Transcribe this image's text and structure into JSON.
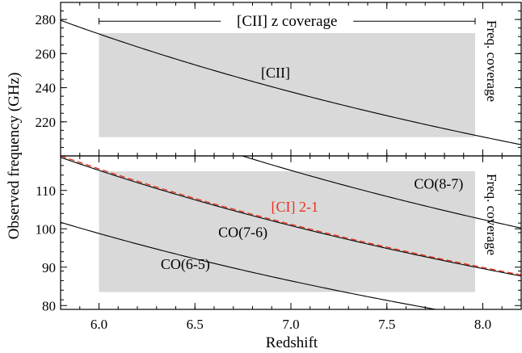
{
  "chart_data": [
    {
      "type": "line",
      "panel": "top",
      "xlabel": "Redshift",
      "ylabel": "Observed frequency (GHz)",
      "xlim": [
        5.8,
        8.2
      ],
      "ylim": [
        200,
        290
      ],
      "x_ticks": [
        6.0,
        6.5,
        7.0,
        7.5,
        8.0
      ],
      "x_tick_labels": [
        "6.0",
        "6.5",
        "7.0",
        "7.5",
        "8.0"
      ],
      "y_ticks": [
        220,
        240,
        260,
        280
      ],
      "y_tick_labels": [
        "220",
        "240",
        "260",
        "280"
      ],
      "grid": false,
      "coverage_band": {
        "x": [
          6.0,
          7.96
        ],
        "y": [
          211,
          272
        ],
        "color": "#d9d9d9",
        "label": "Freq. coverage"
      },
      "redshift_coverage": {
        "x": [
          6.0,
          7.96
        ],
        "y": 279,
        "label": "[CII] z coverage"
      },
      "series": [
        {
          "name": "[CII]",
          "rest_ghz": 1900.537,
          "color": "#000000",
          "dashed": false,
          "label_at": [
            6.92,
            246
          ]
        }
      ]
    },
    {
      "type": "line",
      "panel": "bottom",
      "xlabel": "Redshift",
      "ylabel": "Observed frequency (GHz)",
      "xlim": [
        5.8,
        8.2
      ],
      "ylim": [
        79,
        119
      ],
      "x_ticks": [
        6.0,
        6.5,
        7.0,
        7.5,
        8.0
      ],
      "x_tick_labels": [
        "6.0",
        "6.5",
        "7.0",
        "7.5",
        "8.0"
      ],
      "y_ticks": [
        80,
        90,
        100,
        110
      ],
      "y_tick_labels": [
        "80",
        "90",
        "100",
        "110"
      ],
      "grid": false,
      "coverage_band": {
        "x": [
          6.0,
          7.96
        ],
        "y": [
          83.5,
          115
        ],
        "color": "#d9d9d9",
        "label": "Freq. coverage"
      },
      "series": [
        {
          "name": "CO(8-7)",
          "rest_ghz": 921.8,
          "color": "#000000",
          "dashed": false,
          "label_at": [
            7.77,
            110.5
          ]
        },
        {
          "name": "CO(7-6)",
          "rest_ghz": 806.65,
          "color": "#000000",
          "dashed": false,
          "label_at": [
            6.75,
            97.8
          ]
        },
        {
          "name": "[CI] 2-1",
          "rest_ghz": 809.34,
          "color": "#e8301c",
          "dashed": true,
          "label_at": [
            7.02,
            104.5
          ]
        },
        {
          "name": "CO(6-5)",
          "rest_ghz": 691.47,
          "color": "#000000",
          "dashed": false,
          "label_at": [
            6.45,
            89.5
          ]
        }
      ]
    }
  ]
}
